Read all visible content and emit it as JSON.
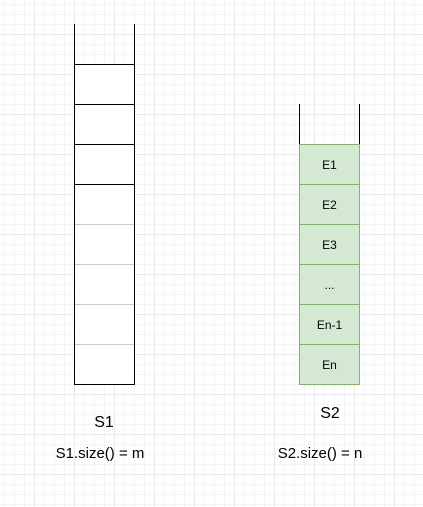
{
  "stacks": [
    {
      "name": "S1",
      "size_expression": "S1.size() = m",
      "element_labels": [
        "",
        "",
        "",
        "",
        "",
        "",
        "",
        ""
      ],
      "style": "outline"
    },
    {
      "name": "S2",
      "size_expression": "S2.size() = n",
      "element_labels": [
        "E1",
        "E2",
        "E3",
        "...",
        "En-1",
        "En"
      ],
      "style": "filled"
    }
  ],
  "colors": {
    "cell_fill_filled": "#d5e8d4",
    "cell_stroke_filled": "#82b366",
    "cell_stroke_outline": "#000000",
    "light_divider": "#c9c9c9",
    "text": "#000000",
    "grid": "#e9e9e9"
  }
}
